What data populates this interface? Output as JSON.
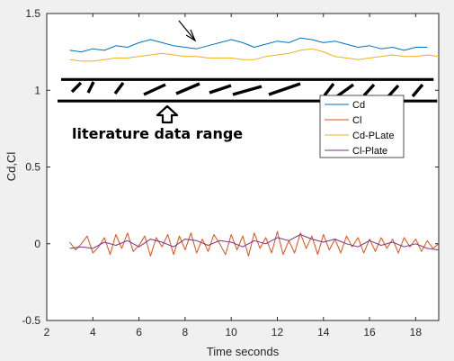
{
  "chart_data": {
    "type": "line",
    "xlabel": "Time seconds",
    "ylabel": "Cd,Cl",
    "xlim": [
      2,
      19
    ],
    "ylim": [
      -0.5,
      1.5
    ],
    "x_ticks": [
      "2",
      "4",
      "6",
      "8",
      "10",
      "12",
      "14",
      "16",
      "18"
    ],
    "y_ticks": [
      "-0.5",
      "0",
      "0.5",
      "1",
      "1.5"
    ],
    "grid": false,
    "legend_placement": "right-center",
    "series": [
      {
        "name": "Cd",
        "color": "#0072BD",
        "x": [
          3,
          3.5,
          4,
          4.5,
          5,
          5.5,
          6,
          6.5,
          7,
          7.5,
          8,
          8.5,
          9,
          9.5,
          10,
          10.5,
          11,
          11.5,
          12,
          12.5,
          13,
          13.5,
          14,
          14.5,
          15,
          15.5,
          16,
          16.5,
          17,
          17.5,
          18,
          18.5
        ],
        "y": [
          1.26,
          1.25,
          1.27,
          1.26,
          1.29,
          1.28,
          1.31,
          1.33,
          1.31,
          1.29,
          1.28,
          1.27,
          1.29,
          1.31,
          1.33,
          1.31,
          1.28,
          1.3,
          1.32,
          1.31,
          1.34,
          1.33,
          1.31,
          1.32,
          1.3,
          1.28,
          1.29,
          1.27,
          1.28,
          1.26,
          1.28,
          1.28
        ]
      },
      {
        "name": "Cl",
        "color": "#D95319",
        "x": [
          3,
          3.25,
          3.5,
          3.75,
          4,
          4.25,
          4.5,
          4.75,
          5,
          5.25,
          5.5,
          5.75,
          6,
          6.25,
          6.5,
          6.75,
          7,
          7.25,
          7.5,
          7.75,
          8,
          8.25,
          8.5,
          8.75,
          9,
          9.25,
          9.5,
          9.75,
          10,
          10.25,
          10.5,
          10.75,
          11,
          11.25,
          11.5,
          11.75,
          12,
          12.25,
          12.5,
          12.75,
          13,
          13.25,
          13.5,
          13.75,
          14,
          14.25,
          14.5,
          14.75,
          15,
          15.25,
          15.5,
          15.75,
          16,
          16.25,
          16.5,
          16.75,
          17,
          17.25,
          17.5,
          17.75,
          18,
          18.25,
          18.5,
          18.75,
          19
        ],
        "y": [
          0.01,
          -0.04,
          0.0,
          0.05,
          -0.06,
          -0.02,
          0.04,
          -0.07,
          0.06,
          -0.03,
          0.07,
          -0.05,
          -0.01,
          0.05,
          -0.08,
          0.04,
          -0.02,
          0.06,
          -0.07,
          0.05,
          -0.04,
          0.07,
          -0.06,
          0.03,
          -0.05,
          0.06,
          0.0,
          -0.07,
          0.06,
          -0.04,
          0.05,
          -0.08,
          0.07,
          -0.03,
          0.04,
          -0.06,
          0.08,
          -0.07,
          0.02,
          -0.06,
          0.07,
          -0.03,
          0.05,
          -0.07,
          0.06,
          -0.04,
          0.03,
          -0.06,
          0.05,
          -0.02,
          0.04,
          -0.06,
          0.03,
          -0.05,
          0.04,
          -0.03,
          0.03,
          -0.06,
          0.04,
          -0.02,
          0.03,
          -0.05,
          0.02,
          -0.03,
          0.0
        ]
      },
      {
        "name": "Cd-PLate",
        "color": "#EDB120",
        "x": [
          3,
          3.5,
          4,
          4.5,
          5,
          5.5,
          6,
          6.5,
          7,
          7.5,
          8,
          8.5,
          9,
          9.5,
          10,
          10.5,
          11,
          11.5,
          12,
          12.5,
          13,
          13.5,
          14,
          14.5,
          15,
          15.5,
          16,
          16.5,
          17,
          17.5,
          18,
          18.5,
          19
        ],
        "y": [
          1.2,
          1.19,
          1.19,
          1.2,
          1.21,
          1.21,
          1.22,
          1.23,
          1.24,
          1.23,
          1.22,
          1.22,
          1.21,
          1.21,
          1.21,
          1.2,
          1.2,
          1.22,
          1.23,
          1.24,
          1.26,
          1.27,
          1.25,
          1.22,
          1.21,
          1.2,
          1.21,
          1.22,
          1.23,
          1.22,
          1.22,
          1.23,
          1.22
        ]
      },
      {
        "name": "Cl-Plate",
        "color": "#7E2F8E",
        "x": [
          3,
          3.5,
          4,
          4.5,
          5,
          5.5,
          6,
          6.5,
          7,
          7.5,
          8,
          8.5,
          9,
          9.5,
          10,
          10.5,
          11,
          11.5,
          12,
          12.5,
          13,
          13.5,
          14,
          14.5,
          15,
          15.5,
          16,
          16.5,
          17,
          17.5,
          18,
          18.5,
          19
        ],
        "y": [
          -0.03,
          -0.02,
          -0.03,
          0.01,
          -0.01,
          0.02,
          -0.02,
          0.03,
          0.01,
          -0.02,
          0.03,
          0.02,
          -0.01,
          0.02,
          0.01,
          -0.02,
          0.02,
          0.0,
          0.04,
          0.02,
          0.06,
          0.03,
          0.01,
          0.03,
          0.0,
          -0.02,
          0.02,
          -0.01,
          0.01,
          -0.02,
          0.0,
          -0.03,
          -0.04
        ]
      }
    ],
    "annotation_text": "literature data range",
    "literature_band": {
      "y_top": 1.07,
      "y_bottom": 0.93,
      "x_start": 2.7,
      "x_end": 18.7
    }
  }
}
